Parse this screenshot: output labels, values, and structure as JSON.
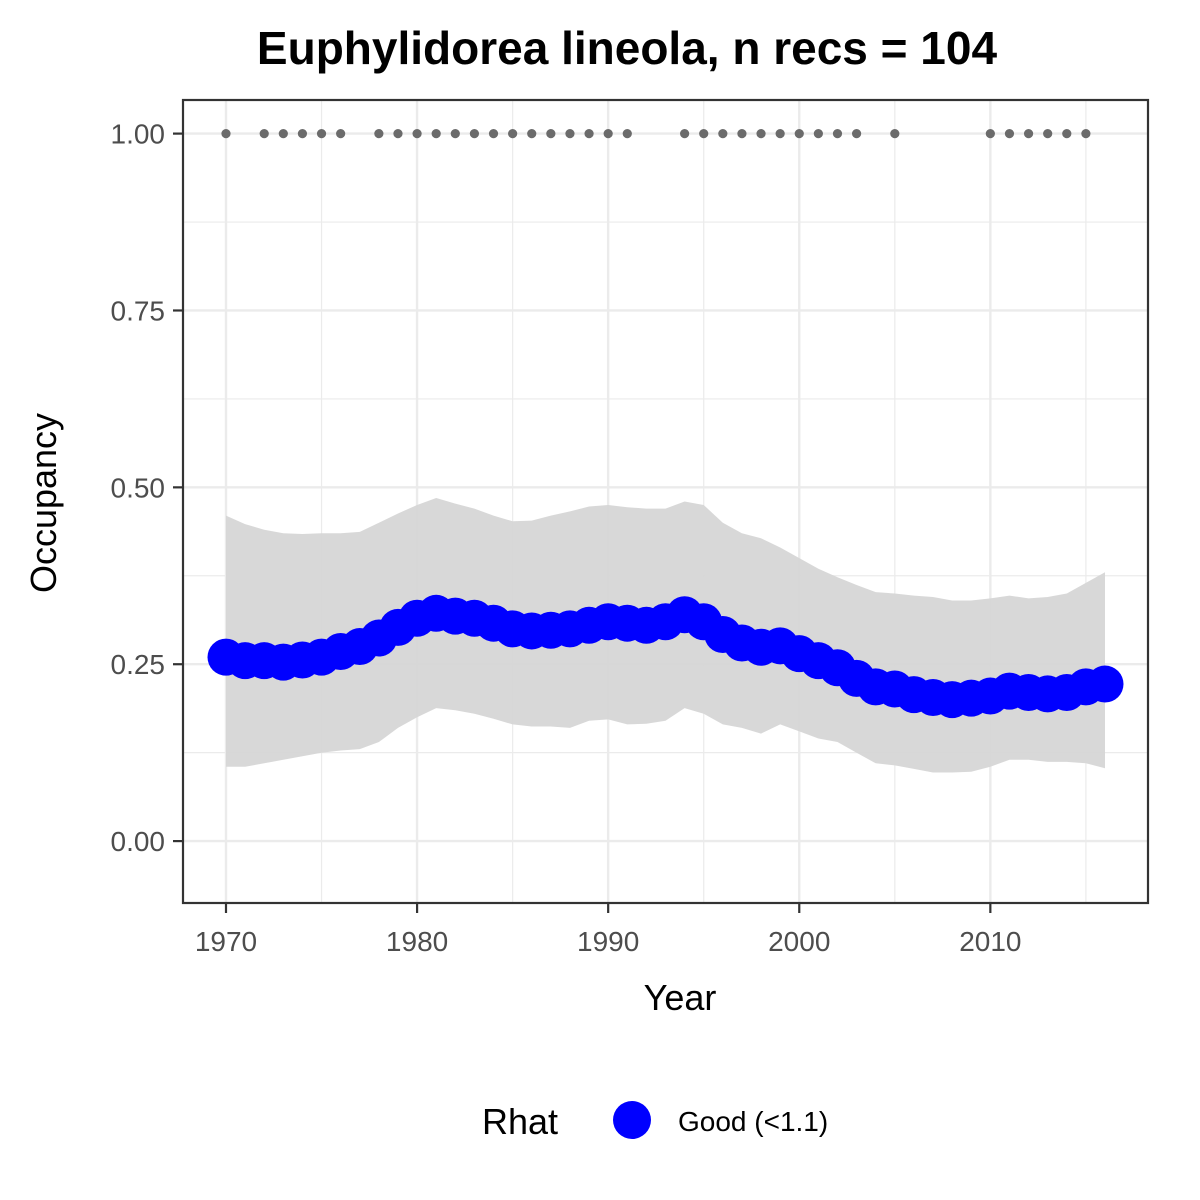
{
  "chart_data": {
    "type": "line",
    "title": "Euphylidorea lineola, n recs = 104",
    "xlabel": "Year",
    "ylabel": "Occupancy",
    "xlim": [
      1967.75,
      2018.25
    ],
    "ylim": [
      -0.0875,
      1.0475
    ],
    "x_ticks": [
      1970,
      1980,
      1990,
      2000,
      2010
    ],
    "x_tick_labels": [
      "1970",
      "1980",
      "1990",
      "2000",
      "2010"
    ],
    "y_ticks": [
      0,
      0.25,
      0.5,
      0.75,
      1.0
    ],
    "y_tick_labels": [
      "0.00",
      "0.25",
      "0.50",
      "0.75",
      "1.00"
    ],
    "grid": true,
    "legend": {
      "title": "Rhat",
      "position": "bottom",
      "entries": [
        {
          "label": "Good (<1.1)",
          "color": "#0000ff"
        }
      ]
    },
    "colors": {
      "line": "#0000ff",
      "ribbon": "#d6d6d6",
      "records": "#6b6b6b",
      "grid": "#ebebeb",
      "border": "#333333"
    },
    "series": [
      {
        "name": "Good (<1.1)",
        "x": [
          1970,
          1971,
          1972,
          1973,
          1974,
          1975,
          1976,
          1977,
          1978,
          1979,
          1980,
          1981,
          1982,
          1983,
          1984,
          1985,
          1986,
          1987,
          1988,
          1989,
          1990,
          1991,
          1992,
          1993,
          1994,
          1995,
          1996,
          1997,
          1998,
          1999,
          2000,
          2001,
          2002,
          2003,
          2004,
          2005,
          2006,
          2007,
          2008,
          2009,
          2010,
          2011,
          2012,
          2013,
          2014,
          2015,
          2016
        ],
        "y": [
          0.26,
          0.255,
          0.255,
          0.253,
          0.256,
          0.26,
          0.268,
          0.275,
          0.287,
          0.302,
          0.315,
          0.322,
          0.318,
          0.315,
          0.308,
          0.3,
          0.297,
          0.298,
          0.3,
          0.305,
          0.31,
          0.308,
          0.305,
          0.31,
          0.32,
          0.31,
          0.292,
          0.28,
          0.274,
          0.276,
          0.265,
          0.255,
          0.245,
          0.23,
          0.218,
          0.215,
          0.207,
          0.203,
          0.2,
          0.202,
          0.205,
          0.212,
          0.21,
          0.208,
          0.21,
          0.218,
          0.222
        ],
        "lower": [
          0.105,
          0.105,
          0.11,
          0.115,
          0.12,
          0.125,
          0.128,
          0.13,
          0.14,
          0.16,
          0.175,
          0.188,
          0.185,
          0.18,
          0.173,
          0.165,
          0.162,
          0.162,
          0.16,
          0.17,
          0.172,
          0.165,
          0.166,
          0.17,
          0.188,
          0.18,
          0.165,
          0.16,
          0.152,
          0.165,
          0.155,
          0.145,
          0.14,
          0.125,
          0.11,
          0.107,
          0.102,
          0.097,
          0.097,
          0.098,
          0.105,
          0.115,
          0.115,
          0.112,
          0.112,
          0.11,
          0.103
        ],
        "upper": [
          0.46,
          0.448,
          0.44,
          0.435,
          0.434,
          0.435,
          0.435,
          0.437,
          0.45,
          0.463,
          0.475,
          0.485,
          0.477,
          0.47,
          0.46,
          0.452,
          0.453,
          0.46,
          0.466,
          0.473,
          0.475,
          0.472,
          0.47,
          0.47,
          0.48,
          0.475,
          0.45,
          0.435,
          0.428,
          0.415,
          0.4,
          0.385,
          0.373,
          0.362,
          0.352,
          0.35,
          0.347,
          0.345,
          0.34,
          0.34,
          0.343,
          0.347,
          0.343,
          0.345,
          0.35,
          0.365,
          0.38
        ]
      }
    ],
    "records": {
      "y": 1.0,
      "x": [
        1970,
        1972,
        1973,
        1974,
        1975,
        1976,
        1978,
        1979,
        1980,
        1981,
        1982,
        1983,
        1984,
        1985,
        1986,
        1987,
        1988,
        1989,
        1990,
        1991,
        1994,
        1995,
        1996,
        1997,
        1998,
        1999,
        2000,
        2001,
        2002,
        2003,
        2005,
        2010,
        2011,
        2012,
        2013,
        2014,
        2015
      ]
    }
  }
}
